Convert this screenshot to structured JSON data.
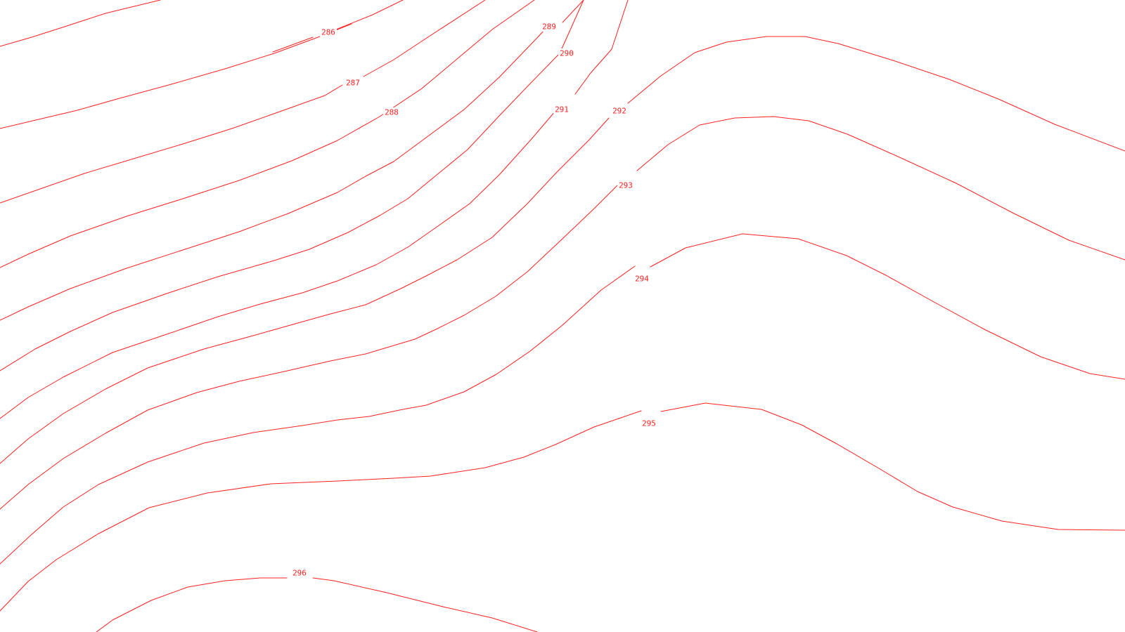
{
  "map": {
    "line_color": "#ff2020",
    "background": "#ffffff",
    "contours": [
      {
        "level": "286",
        "label": "286"
      },
      {
        "level": "287",
        "label": "287"
      },
      {
        "level": "288",
        "label": "288"
      },
      {
        "level": "289",
        "label": "289"
      },
      {
        "level": "290",
        "label": "290"
      },
      {
        "level": "291",
        "label": "291"
      },
      {
        "level": "292",
        "label": "292"
      },
      {
        "level": "293",
        "label": "293"
      },
      {
        "level": "294",
        "label": "294"
      },
      {
        "level": "295",
        "label": "295"
      },
      {
        "level": "296",
        "label": "296"
      }
    ]
  }
}
